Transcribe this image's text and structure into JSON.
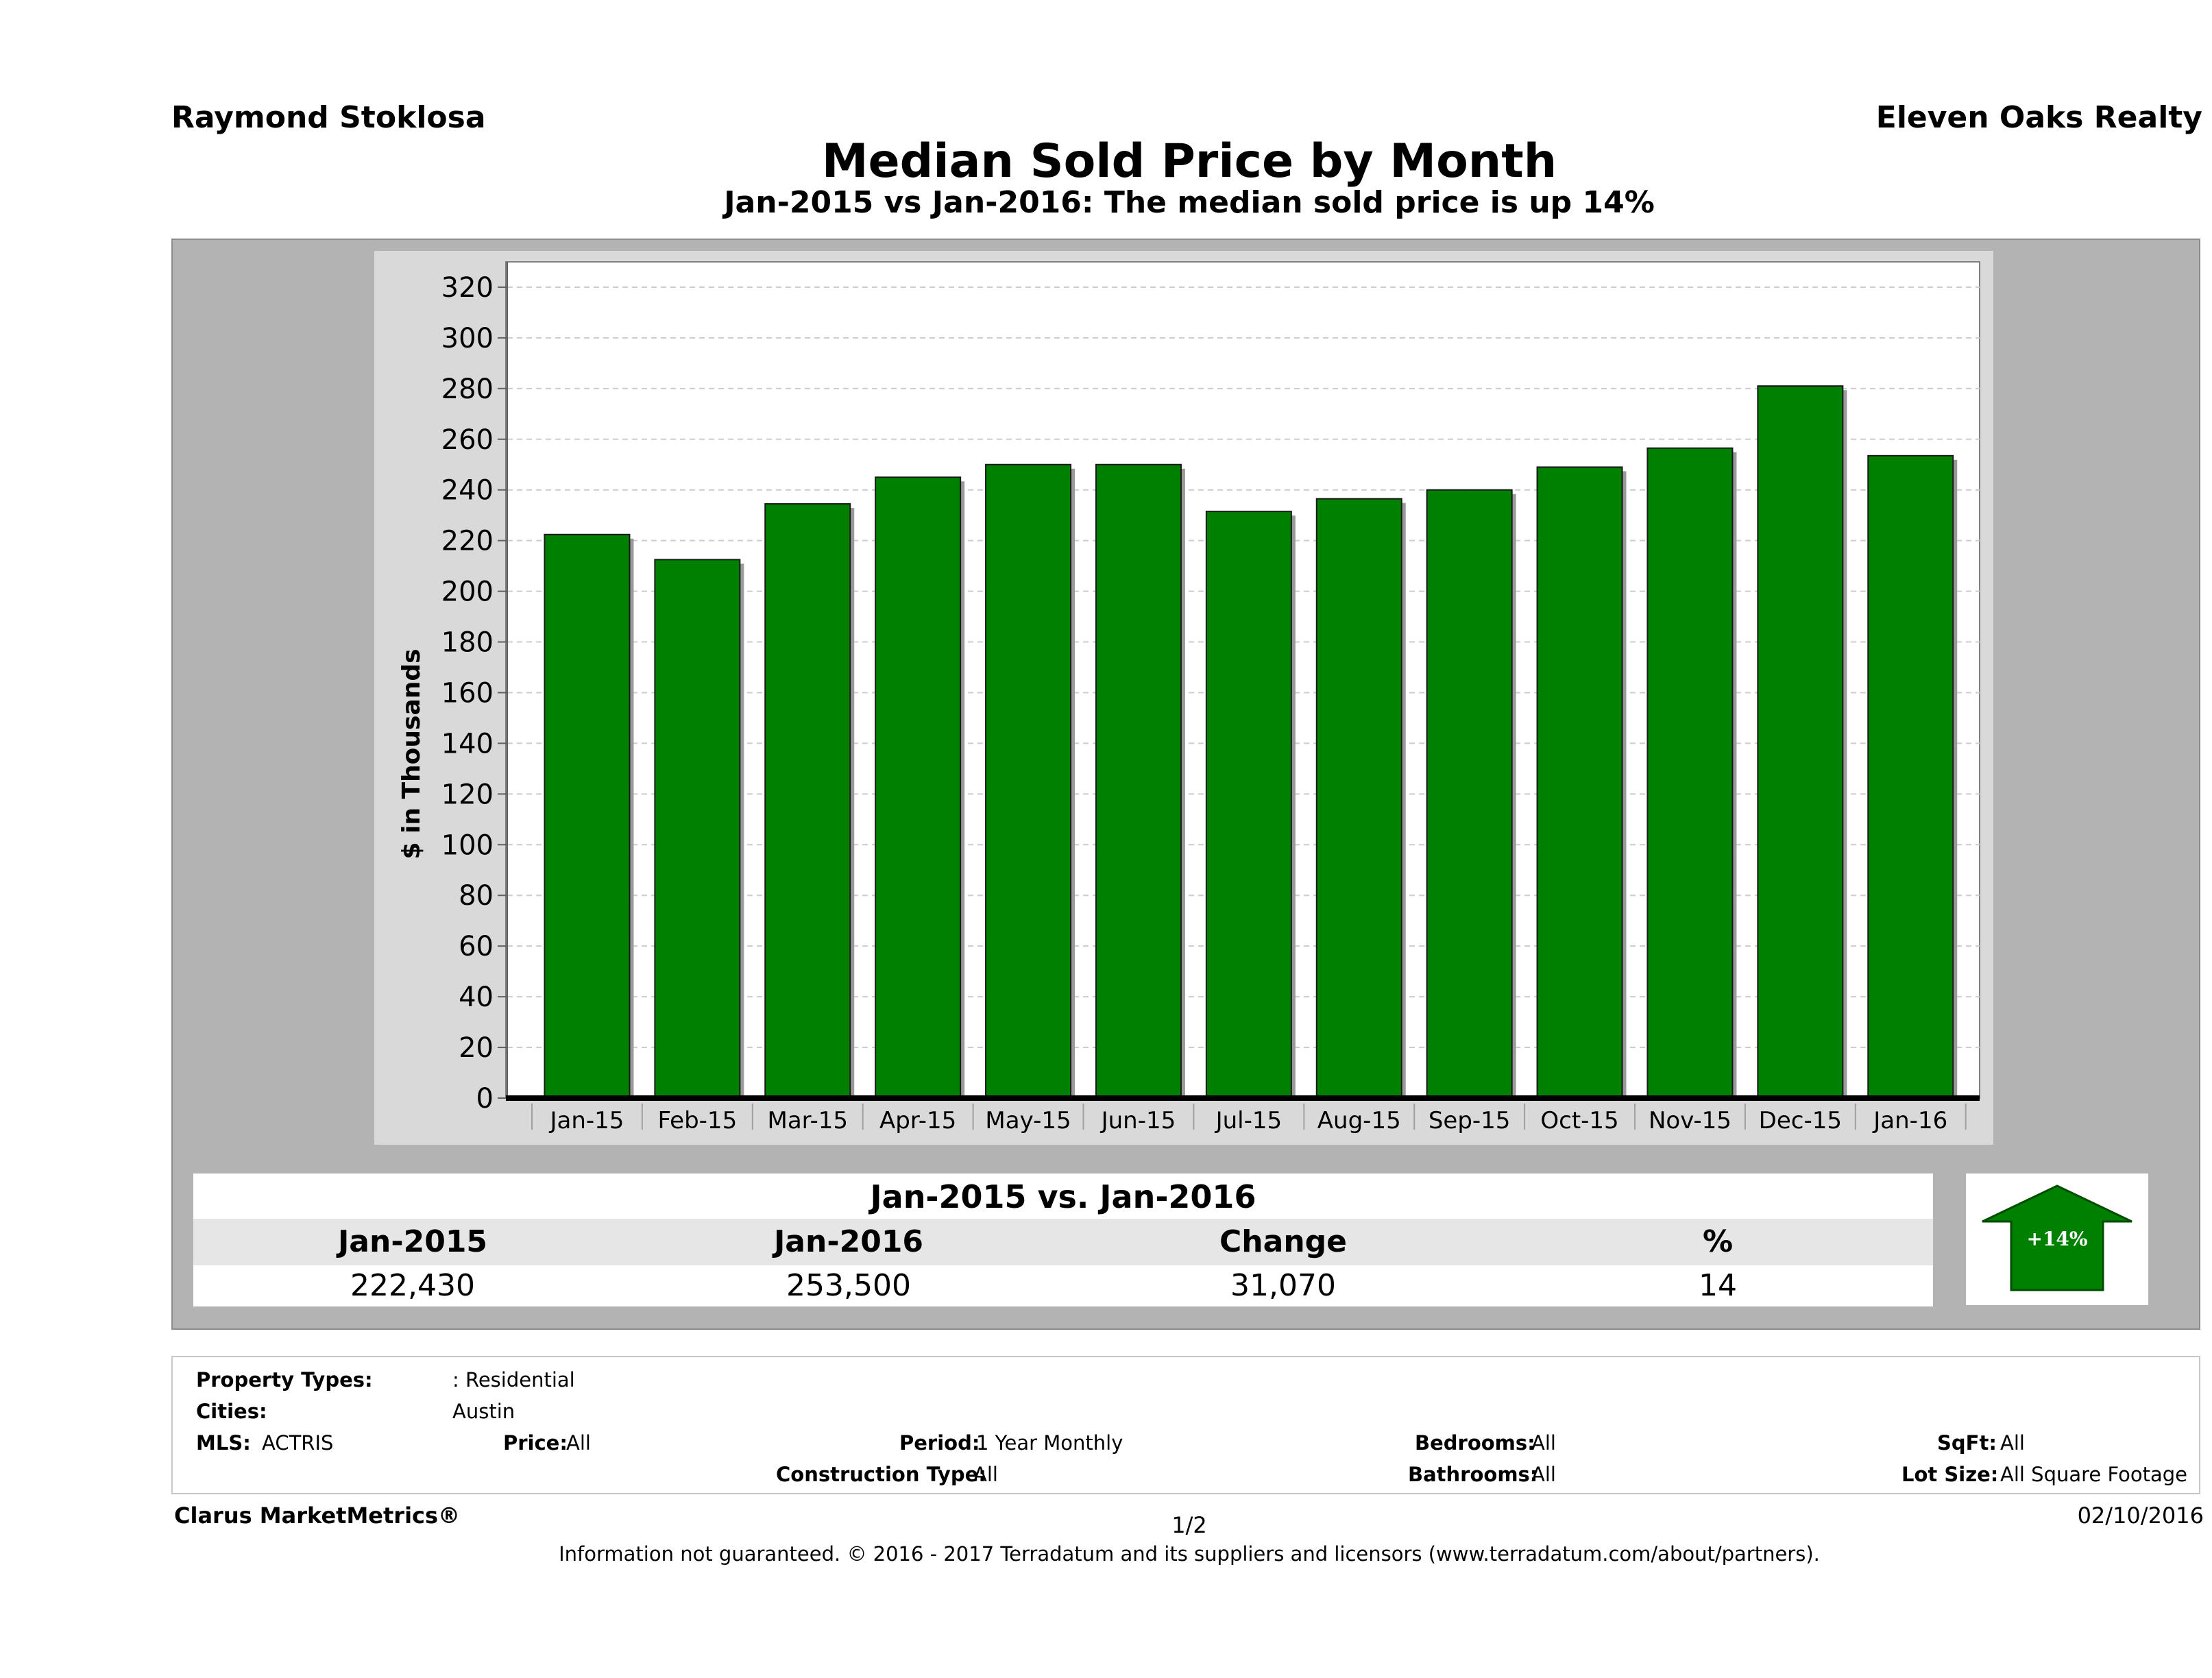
{
  "header": {
    "agent": "Raymond Stoklosa",
    "company": "Eleven Oaks Realty",
    "title": "Median Sold Price by Month",
    "subtitle": "Jan-2015 vs Jan-2016: The median sold price is up 14%"
  },
  "chart_data": {
    "type": "bar",
    "categories": [
      "Jan-15",
      "Feb-15",
      "Mar-15",
      "Apr-15",
      "May-15",
      "Jun-15",
      "Jul-15",
      "Aug-15",
      "Sep-15",
      "Oct-15",
      "Nov-15",
      "Dec-15",
      "Jan-16"
    ],
    "values": [
      222.4,
      212.5,
      234.5,
      245,
      250,
      250,
      231.5,
      236.5,
      240,
      249,
      256.5,
      281,
      253.5
    ],
    "ylabel": "$ in Thousands",
    "ylim": [
      0,
      330
    ],
    "yticks": [
      "0",
      "20",
      "40",
      "60",
      "80",
      "100",
      "120",
      "140",
      "160",
      "180",
      "200",
      "220",
      "240",
      "260",
      "280",
      "300",
      "320"
    ],
    "bar_color": "#008000",
    "grid": true,
    "legend": "none"
  },
  "summary": {
    "heading": "Jan-2015 vs. Jan-2016",
    "columns": [
      {
        "label": "Jan-2015",
        "value": "222,430"
      },
      {
        "label": "Jan-2016",
        "value": "253,500"
      },
      {
        "label": "Change",
        "value": "31,070"
      },
      {
        "label": "%",
        "value": "14"
      }
    ],
    "badge": "+14%",
    "badge_color": "#008000",
    "badge_icon": "up-arrow-icon"
  },
  "criteria": {
    "property_types_label": "Property Types:",
    "property_types_value": ": Residential",
    "cities_label": "Cities:",
    "cities_value": "Austin",
    "mls_label": "MLS:",
    "mls_value": "ACTRIS",
    "price_label": "Price:",
    "price_value": "All",
    "period_label": "Period:",
    "period_value": "1 Year Monthly",
    "bedrooms_label": "Bedrooms:",
    "bedrooms_value": "All",
    "sqft_label": "SqFt:",
    "sqft_value": "All",
    "construction_label": "Construction Type:",
    "construction_value": "All",
    "bathrooms_label": "Bathrooms:",
    "bathrooms_value": "All",
    "lot_label": "Lot Size:",
    "lot_value": "All Square Footage"
  },
  "footer": {
    "brand": "Clarus MarketMetrics®",
    "page": "1/2",
    "date": "02/10/2016",
    "disclaimer": "Information not guaranteed. © 2016 - 2017 Terradatum and its suppliers and licensors (www.terradatum.com/about/partners)."
  }
}
